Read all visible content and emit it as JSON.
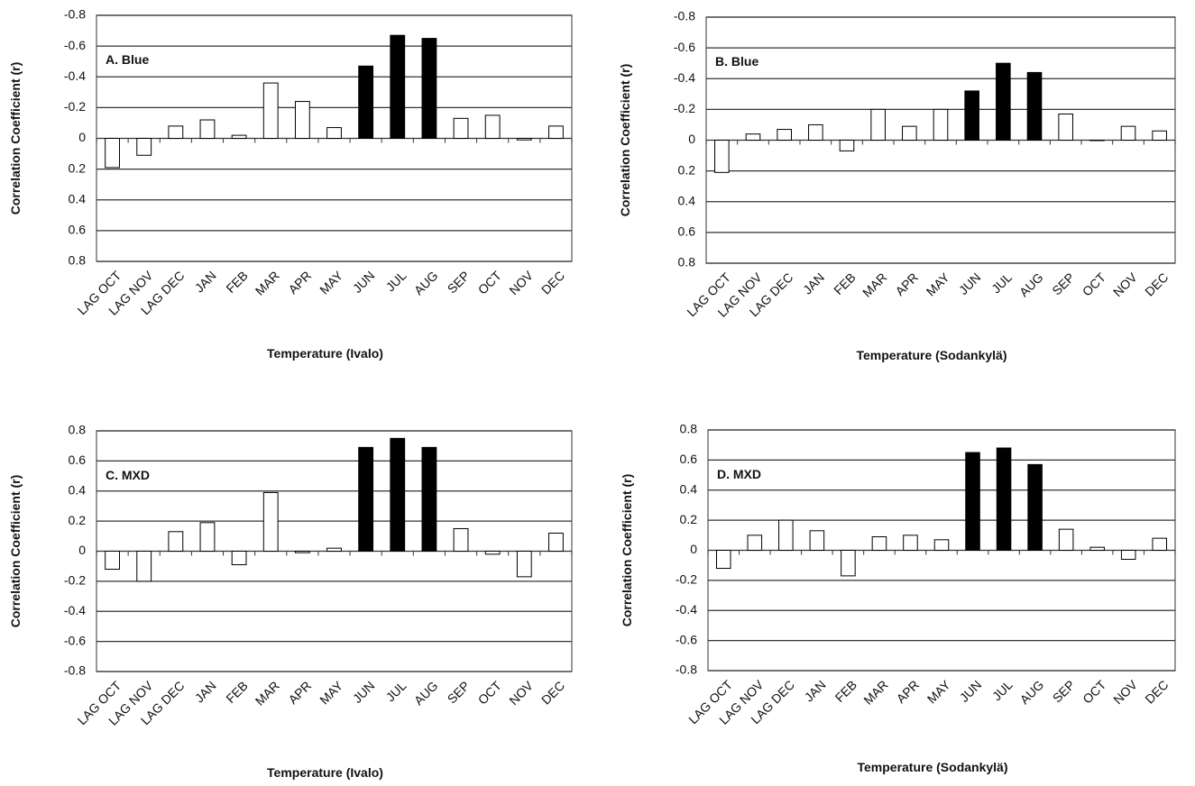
{
  "chart_data": [
    {
      "type": "bar",
      "annotation": "A. Blue",
      "xlabel": "Temperature (Ivalo)",
      "ylabel": "Correlation Coefficient (r)",
      "categories": [
        "LAG OCT",
        "LAG NOV",
        "LAG DEC",
        "JAN",
        "FEB",
        "MAR",
        "APR",
        "MAY",
        "JUN",
        "JUL",
        "AUG",
        "SEP",
        "OCT",
        "NOV",
        "DEC"
      ],
      "values": [
        0.19,
        0.11,
        -0.08,
        -0.12,
        -0.02,
        -0.36,
        -0.24,
        -0.07,
        -0.47,
        -0.67,
        -0.65,
        -0.13,
        -0.15,
        0.01,
        -0.08
      ],
      "colors": [
        "#ffffff",
        "#ffffff",
        "#ffffff",
        "#ffffff",
        "#ffffff",
        "#ffffff",
        "#ffffff",
        "#ffffff",
        "#000000",
        "#000000",
        "#000000",
        "#ffffff",
        "#ffffff",
        "#ffffff",
        "#ffffff"
      ],
      "ylim": [
        0.8,
        -0.8
      ],
      "yticks": [
        -0.8,
        -0.6,
        -0.4,
        -0.2,
        0,
        0.2,
        0.4,
        0.6,
        0.8
      ],
      "grid": true
    },
    {
      "type": "bar",
      "annotation": "B. Blue",
      "xlabel": "Temperature (Sodankylä)",
      "ylabel": "Correlation Coefficient (r)",
      "categories": [
        "LAG OCT",
        "LAG NOV",
        "LAG DEC",
        "JAN",
        "FEB",
        "MAR",
        "APR",
        "MAY",
        "JUN",
        "JUL",
        "AUG",
        "SEP",
        "OCT",
        "NOV",
        "DEC"
      ],
      "values": [
        0.21,
        -0.04,
        -0.07,
        -0.1,
        0.07,
        -0.2,
        -0.09,
        -0.2,
        -0.32,
        -0.5,
        -0.44,
        -0.17,
        0,
        -0.09,
        -0.06
      ],
      "colors": [
        "#ffffff",
        "#ffffff",
        "#ffffff",
        "#ffffff",
        "#ffffff",
        "#ffffff",
        "#ffffff",
        "#ffffff",
        "#000000",
        "#000000",
        "#000000",
        "#ffffff",
        "#ffffff",
        "#ffffff",
        "#ffffff"
      ],
      "ylim": [
        0.8,
        -0.8
      ],
      "yticks": [
        -0.8,
        -0.6,
        -0.4,
        -0.2,
        0,
        0.2,
        0.4,
        0.6,
        0.8
      ],
      "grid": true
    },
    {
      "type": "bar",
      "annotation": "C. MXD",
      "xlabel": "Temperature (Ivalo)",
      "ylabel": "Correlation Coefficient (r)",
      "categories": [
        "LAG OCT",
        "LAG NOV",
        "LAG DEC",
        "JAN",
        "FEB",
        "MAR",
        "APR",
        "MAY",
        "JUN",
        "JUL",
        "AUG",
        "SEP",
        "OCT",
        "NOV",
        "DEC"
      ],
      "values": [
        -0.12,
        -0.2,
        0.13,
        0.19,
        -0.09,
        0.39,
        -0.01,
        0.02,
        0.69,
        0.75,
        0.69,
        0.15,
        -0.02,
        -0.17,
        0.12
      ],
      "colors": [
        "#ffffff",
        "#ffffff",
        "#ffffff",
        "#ffffff",
        "#ffffff",
        "#ffffff",
        "#ffffff",
        "#ffffff",
        "#000000",
        "#000000",
        "#000000",
        "#ffffff",
        "#ffffff",
        "#ffffff",
        "#ffffff"
      ],
      "ylim": [
        -0.8,
        0.8
      ],
      "yticks": [
        -0.8,
        -0.6,
        -0.4,
        -0.2,
        0,
        0.2,
        0.4,
        0.6,
        0.8
      ],
      "grid": true
    },
    {
      "type": "bar",
      "annotation": "D. MXD",
      "xlabel": "Temperature (Sodankylä)",
      "ylabel": "Correlation Coefficient (r)",
      "categories": [
        "LAG OCT",
        "LAG NOV",
        "LAG DEC",
        "JAN",
        "FEB",
        "MAR",
        "APR",
        "MAY",
        "JUN",
        "JUL",
        "AUG",
        "SEP",
        "OCT",
        "NOV",
        "DEC"
      ],
      "values": [
        -0.12,
        0.1,
        0.2,
        0.13,
        -0.17,
        0.09,
        0.1,
        0.07,
        0.65,
        0.68,
        0.57,
        0.14,
        0.02,
        -0.06,
        0.08
      ],
      "colors": [
        "#ffffff",
        "#ffffff",
        "#ffffff",
        "#ffffff",
        "#ffffff",
        "#ffffff",
        "#ffffff",
        "#ffffff",
        "#000000",
        "#000000",
        "#000000",
        "#ffffff",
        "#ffffff",
        "#ffffff",
        "#ffffff"
      ],
      "ylim": [
        -0.8,
        0.8
      ],
      "yticks": [
        -0.8,
        -0.6,
        -0.4,
        -0.2,
        0,
        0.2,
        0.4,
        0.6,
        0.8
      ],
      "grid": true
    }
  ]
}
